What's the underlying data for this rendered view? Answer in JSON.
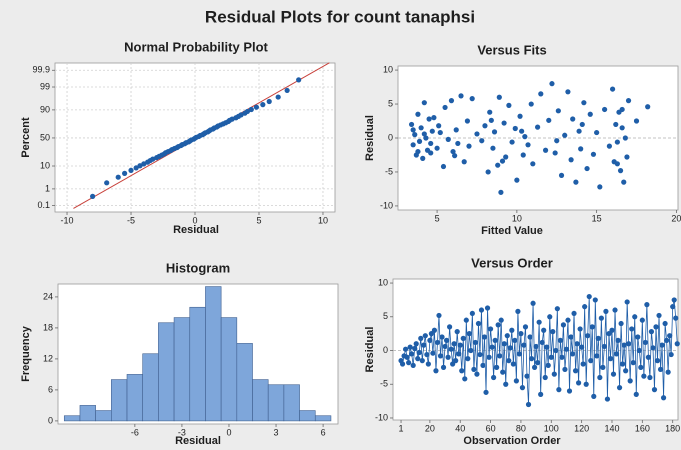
{
  "title": "Residual Plots for count tanaphsi",
  "chart_data": [
    {
      "type": "probability",
      "title": "Normal Probability Plot",
      "x_label": "Residual",
      "y_label": "Percent",
      "color": "#1f5ea8",
      "grid": true,
      "yscale": "probability",
      "xlim": [
        -10.94,
        10.94
      ],
      "ylim": [
        0.036,
        99.969
      ],
      "xticks": [
        -10,
        -5,
        0,
        5,
        10
      ],
      "yticks": [
        0.1,
        1,
        10,
        50,
        90,
        99,
        99.9
      ],
      "x": [
        -8.0,
        -6.9,
        -6.0,
        -5.5,
        -5.0,
        -4.6,
        -4.3,
        -4.0,
        -3.7,
        -3.5,
        -3.3,
        -3.0,
        -2.8,
        -2.6,
        -2.4,
        -2.3,
        -2.1,
        -1.9,
        -1.8,
        -1.6,
        -1.4,
        -1.3,
        -1.1,
        -1.0,
        -0.8,
        -0.7,
        -0.5,
        -0.4,
        -0.3,
        -0.1,
        0.0,
        0.1,
        0.3,
        0.4,
        0.6,
        0.7,
        0.8,
        1.0,
        1.1,
        1.2,
        1.4,
        1.5,
        1.7,
        1.8,
        2.0,
        2.2,
        2.4,
        2.6,
        2.7,
        2.9,
        3.2,
        3.4,
        3.6,
        3.9,
        4.1,
        4.4,
        4.8,
        5.3,
        5.8,
        6.5,
        7.2,
        8.1
      ],
      "y": [
        0.38,
        2.02,
        3.65,
        5.29,
        6.93,
        8.56,
        10.2,
        11.8,
        13.5,
        15.1,
        16.7,
        18.4,
        20.0,
        21.6,
        23.3,
        24.9,
        26.6,
        28.2,
        29.8,
        31.5,
        33.1,
        34.7,
        36.4,
        38.0,
        39.6,
        41.3,
        42.9,
        44.5,
        46.2,
        47.8,
        49.5,
        51.1,
        52.7,
        54.4,
        56.0,
        57.6,
        59.3,
        60.9,
        62.5,
        64.2,
        65.8,
        67.5,
        69.1,
        70.7,
        72.4,
        74.0,
        75.6,
        77.3,
        78.9,
        80.5,
        82.2,
        83.8,
        85.4,
        87.1,
        88.7,
        90.3,
        92.0,
        93.6,
        95.2,
        96.9,
        98.5,
        99.6
      ],
      "fit_line": {
        "x": [
          -9.5,
          10.5
        ],
        "y": [
          0.064,
          99.97
        ],
        "color": "#c8403a"
      }
    },
    {
      "type": "scatter",
      "title": "Versus Fits",
      "x_label": "Fitted Value",
      "y_label": "Residual",
      "color": "#1f5ea8",
      "reference_line": 0,
      "xlim": [
        2.55,
        20.1
      ],
      "ylim": [
        -10.6,
        10.6
      ],
      "xticks": [
        5,
        10,
        15,
        20
      ],
      "yticks": [
        -10,
        -5,
        0,
        5,
        10
      ],
      "x": [
        3.4,
        3.5,
        3.6,
        3.7,
        3.8,
        3.9,
        4.0,
        4.1,
        4.2,
        4.3,
        4.4,
        4.5,
        4.6,
        4.7,
        4.8,
        5.0,
        5.2,
        5.4,
        5.5,
        5.7,
        5.9,
        6.0,
        6.2,
        6.3,
        6.5,
        6.7,
        6.9,
        7.0,
        7.2,
        7.5,
        7.8,
        8.0,
        8.2,
        8.3,
        8.5,
        8.6,
        8.8,
        8.9,
        9.0,
        9.2,
        9.3,
        9.5,
        9.7,
        9.9,
        10.0,
        10.2,
        10.4,
        10.5,
        10.7,
        10.9,
        11.0,
        11.3,
        11.5,
        11.8,
        12.0,
        12.2,
        12.4,
        12.6,
        12.8,
        13.0,
        13.2,
        13.4,
        13.5,
        13.7,
        13.9,
        14.0,
        14.2,
        14.4,
        14.6,
        14.8,
        15.0,
        15.2,
        15.5,
        15.8,
        16.0,
        16.1,
        16.2,
        16.3,
        16.4,
        16.5,
        16.6,
        16.7,
        16.8,
        16.9,
        17.0,
        17.5,
        18.2,
        3.5,
        3.8,
        4.2,
        4.6,
        5.1,
        6.1,
        8.4,
        9.1,
        10.3,
        12.5,
        14.1,
        16.3,
        16.6
      ],
      "y": [
        2.0,
        -1.0,
        0.5,
        -2.5,
        3.5,
        -0.5,
        1.5,
        -3.0,
        5.2,
        0.0,
        -1.8,
        2.8,
        -2.2,
        1.0,
        3.0,
        -1.5,
        0.8,
        -4.2,
        4.5,
        -0.2,
        5.5,
        -2.0,
        1.2,
        -0.8,
        6.2,
        -3.5,
        2.5,
        -1.2,
        5.8,
        0.6,
        -0.4,
        1.8,
        -5.0,
        3.8,
        -1.5,
        0.9,
        -4.0,
        6.0,
        -8.0,
        2.2,
        -2.8,
        4.8,
        -0.6,
        1.4,
        -6.2,
        3.2,
        -2.5,
        0.2,
        -1.0,
        5.0,
        -3.8,
        1.6,
        6.5,
        -1.8,
        2.6,
        8.0,
        -2.2,
        4.0,
        -5.5,
        0.4,
        6.8,
        -3.2,
        2.8,
        -6.5,
        1.0,
        -1.6,
        5.2,
        -4.5,
        3.5,
        -2.4,
        0.8,
        -7.2,
        4.2,
        -1.2,
        7.2,
        -3.5,
        2.0,
        -0.6,
        3.8,
        -4.8,
        1.5,
        -6.5,
        0.0,
        -2.8,
        5.5,
        2.5,
        4.6,
        1.2,
        -2.0,
        0.6,
        -0.8,
        1.8,
        -2.6,
        2.6,
        -3.4,
        1.0,
        -0.4,
        2.0,
        -3.8,
        4.2
      ]
    },
    {
      "type": "histogram",
      "title": "Histogram",
      "x_label": "Residual",
      "y_label": "Frequency",
      "color": "#7ea6da",
      "edgecolor": "#3f5f8f",
      "xlim": [
        -10.9,
        6.95
      ],
      "ylim": [
        -0.6,
        26.5
      ],
      "xticks": [
        -6,
        -3,
        0,
        3,
        6
      ],
      "yticks": [
        0,
        6,
        12,
        18,
        24
      ],
      "bins": [
        -10.5,
        -9.5,
        -8.5,
        -7.5,
        -6.5,
        -5.5,
        -4.5,
        -3.5,
        -2.5,
        -1.5,
        -0.5,
        0.5,
        1.5,
        2.5,
        3.5,
        4.5,
        5.5,
        6.5
      ],
      "counts": [
        1,
        3,
        2,
        8,
        9,
        13,
        19,
        20,
        22,
        26,
        20,
        15,
        8,
        7,
        7,
        2,
        1
      ]
    },
    {
      "type": "line",
      "title": "Versus Order",
      "x_label": "Observation Order",
      "y_label": "Residual",
      "color": "#1f5ea8",
      "reference_line": 0,
      "xlim": [
        -4.3,
        183.5
      ],
      "ylim": [
        -10.3,
        10.6
      ],
      "xticks": [
        1,
        20,
        40,
        60,
        80,
        100,
        120,
        140,
        160,
        180
      ],
      "yticks": [
        -10,
        -5,
        0,
        5,
        10
      ],
      "x": [
        1,
        2,
        3,
        4,
        5,
        6,
        7,
        8,
        9,
        10,
        11,
        12,
        13,
        14,
        15,
        16,
        17,
        18,
        19,
        20,
        21,
        22,
        23,
        24,
        25,
        26,
        27,
        28,
        29,
        30,
        31,
        32,
        33,
        34,
        35,
        36,
        37,
        38,
        39,
        40,
        41,
        42,
        43,
        44,
        45,
        46,
        47,
        48,
        49,
        50,
        51,
        52,
        53,
        54,
        55,
        56,
        57,
        58,
        59,
        60,
        61,
        62,
        63,
        64,
        65,
        66,
        67,
        68,
        69,
        70,
        71,
        72,
        73,
        74,
        75,
        76,
        77,
        78,
        79,
        80,
        81,
        82,
        83,
        84,
        85,
        86,
        87,
        88,
        89,
        90,
        91,
        92,
        93,
        94,
        95,
        96,
        97,
        98,
        99,
        100,
        101,
        102,
        103,
        104,
        105,
        106,
        107,
        108,
        109,
        110,
        111,
        112,
        113,
        114,
        115,
        116,
        117,
        118,
        119,
        120,
        121,
        122,
        123,
        124,
        125,
        126,
        127,
        128,
        129,
        130,
        131,
        132,
        133,
        134,
        135,
        136,
        137,
        138,
        139,
        140,
        141,
        142,
        143,
        144,
        145,
        146,
        147,
        148,
        149,
        150,
        151,
        152,
        153,
        154,
        155,
        156,
        157,
        158,
        159,
        160,
        161,
        162,
        163,
        164,
        165,
        166,
        167,
        168,
        169,
        170,
        171,
        172,
        173,
        174,
        175,
        176,
        177,
        178,
        179,
        180,
        181,
        182,
        183
      ],
      "values": [
        -1.5,
        -2.0,
        -0.8,
        0.2,
        -1.0,
        -1.8,
        0.5,
        -0.5,
        -2.2,
        0.3,
        1.0,
        -1.2,
        -0.3,
        1.8,
        -1.5,
        0.8,
        2.2,
        -0.6,
        -2.0,
        1.5,
        2.5,
        -0.4,
        3.0,
        -3.0,
        1.2,
        5.2,
        -0.8,
        2.0,
        -2.5,
        0.6,
        1.5,
        -1.0,
        3.5,
        0.2,
        -2.0,
        1.0,
        -1.5,
        2.8,
        -0.5,
        0.8,
        -3.0,
        1.8,
        -4.2,
        4.5,
        -1.2,
        2.5,
        0.0,
        5.5,
        -2.8,
        1.2,
        -3.5,
        4.0,
        -0.6,
        6.0,
        -2.2,
        2.0,
        -6.2,
        6.3,
        -1.0,
        3.2,
        0.5,
        -4.0,
        1.5,
        -2.5,
        3.8,
        -0.8,
        4.5,
        -3.2,
        1.0,
        -5.0,
        2.2,
        -1.5,
        0.4,
        3.0,
        -2.0,
        1.5,
        -4.5,
        5.8,
        -0.5,
        2.5,
        -5.5,
        0.8,
        3.5,
        -3.8,
        -8.0,
        2.0,
        -1.2,
        7.0,
        -2.5,
        0.6,
        -1.8,
        4.2,
        -6.5,
        1.2,
        3.0,
        -4.0,
        0.5,
        -2.2,
        5.0,
        -1.0,
        2.8,
        -3.5,
        0.0,
        6.2,
        -5.8,
        1.5,
        -1.0,
        3.8,
        -2.8,
        0.2,
        4.5,
        -6.0,
        2.0,
        -0.5,
        5.5,
        -3.0,
        1.0,
        -4.8,
        3.2,
        0.5,
        -2.0,
        6.5,
        -5.0,
        2.2,
        8.0,
        -1.5,
        3.5,
        -6.8,
        7.5,
        -0.8,
        1.8,
        -4.0,
        4.8,
        -2.5,
        0.6,
        5.8,
        -7.2,
        2.5,
        -1.2,
        3.0,
        -3.5,
        6.0,
        -0.5,
        1.5,
        -5.5,
        4.0,
        -2.0,
        0.8,
        -3.0,
        7.2,
        1.0,
        -4.5,
        3.2,
        -1.8,
        5.0,
        -6.5,
        2.0,
        0.0,
        -2.5,
        4.5,
        -3.8,
        1.2,
        6.8,
        -1.0,
        -4.0,
        2.8,
        0.4,
        -5.8,
        3.5,
        -1.5,
        5.2,
        -2.8,
        0.8,
        -7.0,
        4.0,
        1.5,
        -3.2,
        2.2,
        -0.6,
        6.5,
        7.5,
        4.8,
        1.0
      ]
    }
  ]
}
